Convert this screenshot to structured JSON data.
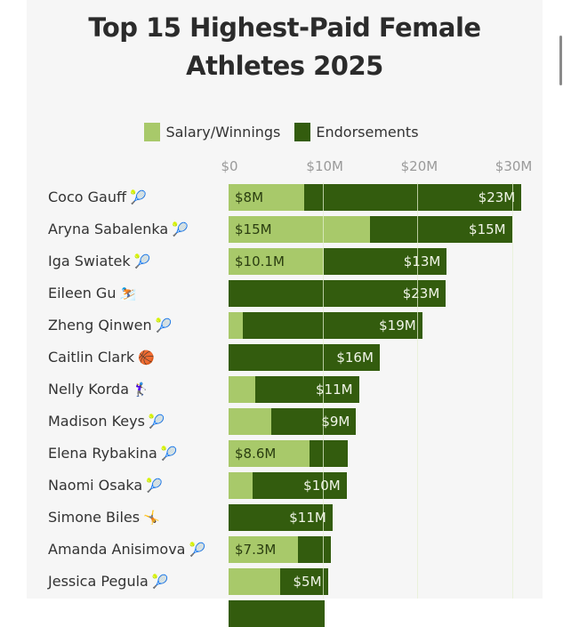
{
  "colors": {
    "salary": "#a8c96a",
    "endorsements": "#335c0e",
    "salary_text": "#2a3d10",
    "endorsement_text": "#f1f5e8",
    "panel_bg": "#f6f6f6"
  },
  "title_lines": [
    "Top 15 Highest-Paid Female",
    "Athletes 2025"
  ],
  "chart_data": {
    "type": "bar",
    "orientation": "horizontal",
    "stacked": true,
    "title": "Top 15 Highest-Paid Female Athletes 2025",
    "xlabel": "",
    "ylabel": "",
    "xlim": [
      0,
      32
    ],
    "x_units": "$M",
    "x_ticks": [
      0,
      10,
      20,
      30
    ],
    "x_tick_labels": [
      "$0",
      "$10M",
      "$20M",
      "$30M"
    ],
    "tick_position": "top",
    "grid": true,
    "legend": {
      "placement": "top-center",
      "entries": [
        "Salary/Winnings",
        "Endorsements"
      ]
    },
    "categories": [
      "Coco Gauff",
      "Aryna Sabalenka",
      "Iga Swiatek",
      "Eileen Gu",
      "Zheng Qinwen",
      "Caitlin Clark",
      "Nelly Korda",
      "Madison Keys",
      "Elena Rybakina",
      "Naomi Osaka",
      "Simone Biles",
      "Amanda Anisimova",
      "Jessica Pegula"
    ],
    "category_emojis": [
      "🎾",
      "🎾",
      "🎾",
      "⛷️",
      "🎾",
      "🏀",
      "🏌️‍♀️",
      "🎾",
      "🎾",
      "🎾",
      "🤸",
      "🎾",
      "🎾"
    ],
    "category_icons": [
      "tennis-ball-icon",
      "tennis-ball-icon",
      "tennis-ball-icon",
      "skier-icon",
      "tennis-ball-icon",
      "basketball-icon",
      "golfer-icon",
      "tennis-ball-icon",
      "tennis-ball-icon",
      "tennis-ball-icon",
      "gymnast-icon",
      "tennis-ball-icon",
      "tennis-ball-icon"
    ],
    "series": [
      {
        "name": "Salary/Winnings",
        "values": [
          8,
          15,
          10.1,
          0,
          1.5,
          0,
          2.8,
          4.5,
          8.6,
          2.5,
          0,
          7.3,
          5.5
        ],
        "labels": [
          "$8M",
          "$15M",
          "$10.1M",
          "",
          "",
          "",
          "",
          "",
          "$8.6M",
          "",
          "",
          "$7.3M",
          ""
        ]
      },
      {
        "name": "Endorsements",
        "values": [
          23,
          15,
          13,
          23,
          19,
          16,
          11,
          9,
          4,
          10,
          11,
          3.5,
          5
        ],
        "labels": [
          "$23M",
          "$15M",
          "$13M",
          "$23M",
          "$19M",
          "$16M",
          "$11M",
          "$9M",
          "",
          "$10M",
          "$11M",
          "",
          "$5M"
        ]
      }
    ],
    "note": "List truncated at bottom; a 14th row is partially visible (cut off)."
  }
}
